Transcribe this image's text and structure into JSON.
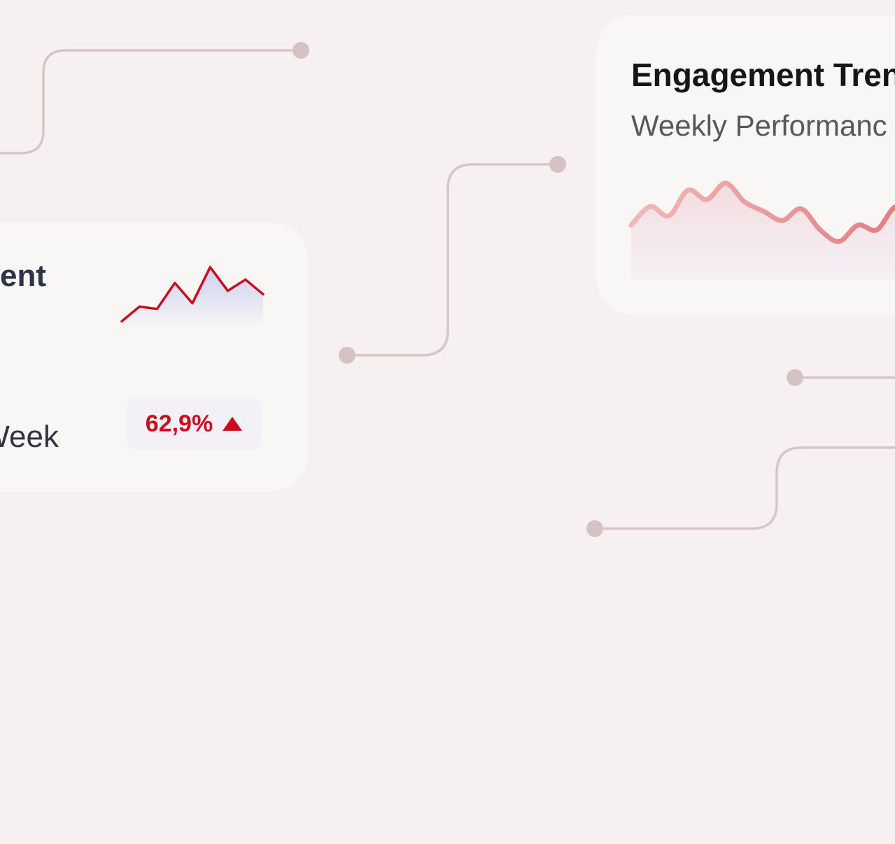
{
  "left_card": {
    "title_fragment": "ent",
    "subtitle_fragment": "Week",
    "badge_value": "62,9%",
    "badge_icon": "triangle-up-icon",
    "sparkline": {
      "type": "line",
      "values": [
        4,
        17,
        15,
        38,
        20,
        52,
        31,
        41,
        28
      ],
      "color": "#cc0a1d",
      "fill_color": "#c9cff0"
    }
  },
  "right_card": {
    "title": "Engagement Tren",
    "subtitle": "Weekly Performanc",
    "chart": {
      "type": "area",
      "values": [
        30,
        46,
        38,
        60,
        52,
        66,
        50,
        42,
        34,
        44,
        26,
        16,
        30,
        26,
        46,
        40
      ],
      "color_start": "#f2b8b8",
      "color_end": "#e07b80",
      "fill_color": "#f2e3e7"
    }
  },
  "colors": {
    "background": "#f6f0f0",
    "card": "#f9f7f5",
    "connector": "#d9c4c6",
    "accent": "#cc0a1d"
  }
}
